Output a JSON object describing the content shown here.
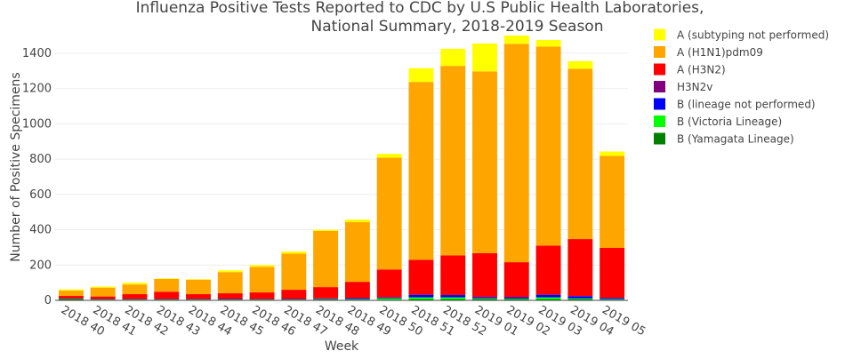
{
  "chart_data": {
    "type": "bar",
    "stacked": true,
    "title_lines": [
      "Influenza Positive Tests Reported to CDC by U.S Public Health Laboratories,",
      "National Summary, 2018-2019 Season"
    ],
    "xlabel": "Week",
    "ylabel": "Number of Positive Specimens",
    "ylim": [
      0,
      1500
    ],
    "yticks": [
      0,
      200,
      400,
      600,
      800,
      1000,
      1200,
      1400
    ],
    "grid": true,
    "legend_position": "right",
    "categories": [
      "2018 40",
      "2018 41",
      "2018 42",
      "2018 43",
      "2018 44",
      "2018 45",
      "2018 46",
      "2018 47",
      "2018 48",
      "2018 49",
      "2018 50",
      "2018 51",
      "2018 52",
      "2019 01",
      "2019 02",
      "2019 03",
      "2019 04",
      "2019 05"
    ],
    "series": [
      {
        "name": "B (Yamagata Lineage)",
        "color": "#008000",
        "values": [
          5,
          3,
          3,
          3,
          3,
          3,
          3,
          3,
          4,
          4,
          4,
          5,
          5,
          5,
          5,
          5,
          5,
          4
        ]
      },
      {
        "name": "B (Victoria Lineage)",
        "color": "#00ff00",
        "values": [
          3,
          2,
          2,
          2,
          2,
          2,
          2,
          2,
          3,
          3,
          8,
          12,
          12,
          6,
          5,
          12,
          6,
          3
        ]
      },
      {
        "name": "B (lineage not performed)",
        "color": "#0000ff",
        "values": [
          2,
          2,
          2,
          2,
          2,
          3,
          2,
          3,
          4,
          6,
          5,
          15,
          13,
          8,
          8,
          15,
          13,
          7
        ]
      },
      {
        "name": "H3N2v",
        "color": "#800080",
        "values": [
          0,
          0,
          0,
          0,
          0,
          0,
          0,
          0,
          0,
          0,
          0,
          0,
          0,
          0,
          0,
          0,
          0,
          0
        ]
      },
      {
        "name": "A (H3N2)",
        "color": "#ff0000",
        "values": [
          15,
          15,
          28,
          42,
          28,
          32,
          38,
          52,
          64,
          92,
          158,
          198,
          225,
          248,
          198,
          278,
          323,
          283
        ]
      },
      {
        "name": "A (H1N1)pdm09",
        "color": "#ffa500",
        "values": [
          30,
          50,
          55,
          72,
          82,
          120,
          145,
          205,
          318,
          338,
          633,
          1007,
          1073,
          1030,
          1237,
          1127,
          965,
          521
        ]
      },
      {
        "name": "A (subtyping not performed)",
        "color": "#ffff00",
        "values": [
          7,
          6,
          10,
          3,
          3,
          10,
          10,
          12,
          7,
          15,
          22,
          78,
          97,
          158,
          47,
          38,
          43,
          25
        ]
      }
    ]
  }
}
